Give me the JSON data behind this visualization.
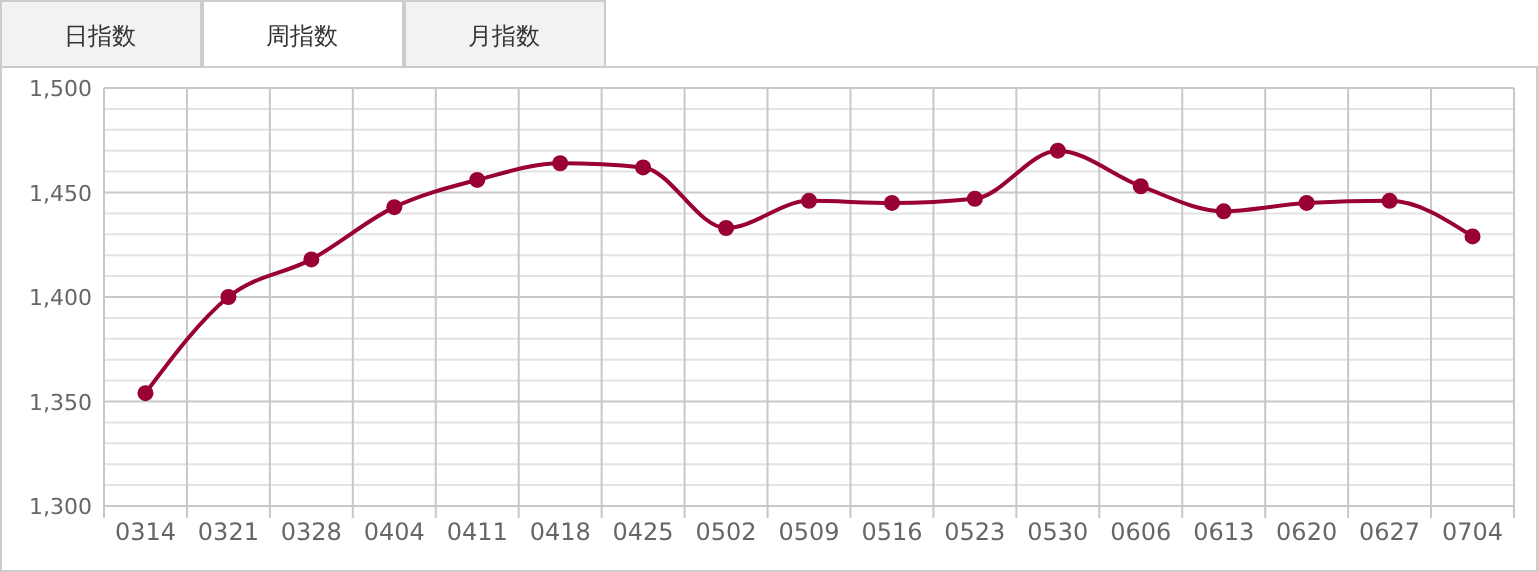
{
  "chart_data": {
    "type": "line",
    "annotations": [
      "日指数",
      "周指数",
      "月指数"
    ],
    "categories": [
      "0314",
      "0321",
      "0328",
      "0404",
      "0411",
      "0418",
      "0425",
      "0502",
      "0509",
      "0516",
      "0523",
      "0530",
      "0606",
      "0613",
      "0620",
      "0627",
      "0704"
    ],
    "series": [
      {
        "color": "#990033",
        "values": [
          1354,
          1400,
          1418,
          1443,
          1456,
          1464,
          1462,
          1433,
          1446,
          1445,
          1447,
          1470,
          1453,
          1441,
          1445,
          1446,
          1429
        ]
      }
    ],
    "ylim": [
      1300,
      1500
    ],
    "yticks": [
      {
        "value": 1300,
        "label": "1,300"
      },
      {
        "value": 1310,
        "label": null
      },
      {
        "value": 1320,
        "label": null
      },
      {
        "value": 1330,
        "label": null
      },
      {
        "value": 1340,
        "label": null
      },
      {
        "value": 1350,
        "label": "1,350"
      },
      {
        "value": 1360,
        "label": null
      },
      {
        "value": 1370,
        "label": null
      },
      {
        "value": 1380,
        "label": null
      },
      {
        "value": 1390,
        "label": null
      },
      {
        "value": 1400,
        "label": "1,400"
      },
      {
        "value": 1410,
        "label": null
      },
      {
        "value": 1420,
        "label": null
      },
      {
        "value": 1430,
        "label": null
      },
      {
        "value": 1440,
        "label": null
      },
      {
        "value": 1450,
        "label": "1,450"
      },
      {
        "value": 1460,
        "label": null
      },
      {
        "value": 1470,
        "label": null
      },
      {
        "value": 1480,
        "label": null
      },
      {
        "value": 1490,
        "label": null
      },
      {
        "value": 1500,
        "label": "1,500"
      }
    ],
    "grid": true,
    "marker": "circle",
    "line_style": "solid"
  }
}
